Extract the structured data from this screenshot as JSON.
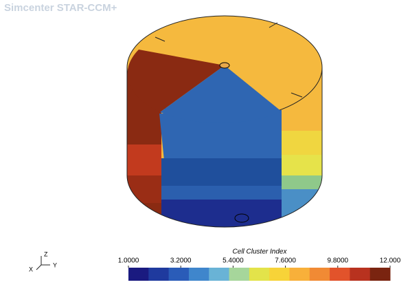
{
  "app_title": "Simcenter STAR-CCM+",
  "colorbar": {
    "title": "Cell Cluster Index",
    "range": [
      1,
      12
    ],
    "ticks": [
      {
        "value": 1,
        "label": "1.0000"
      },
      {
        "value": 3.2,
        "label": "3.2000"
      },
      {
        "value": 5.4,
        "label": "5.4000"
      },
      {
        "value": 7.6,
        "label": "7.6000"
      },
      {
        "value": 9.8,
        "label": "9.8000"
      },
      {
        "value": 12,
        "label": "12.000"
      }
    ],
    "colormap": [
      "#1a1a80",
      "#1f3a9e",
      "#2a5cb8",
      "#3f86cc",
      "#69b3d6",
      "#a6d69b",
      "#e3e34a",
      "#f7d338",
      "#f8b03a",
      "#f18a34",
      "#e2532b",
      "#b8321f",
      "#7a2410"
    ]
  },
  "triad": {
    "x": "X",
    "y": "Y",
    "z": "Z"
  }
}
